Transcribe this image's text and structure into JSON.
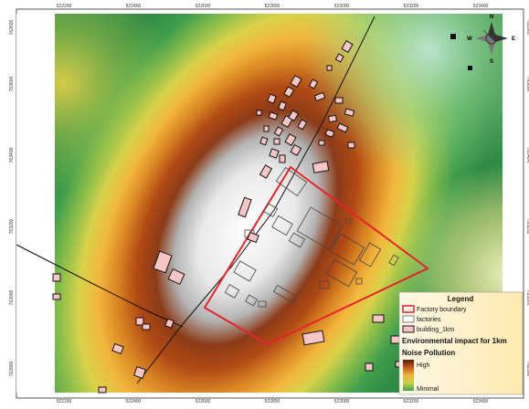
{
  "map": {
    "x_ticks_top": [
      "522200",
      "522400",
      "522600",
      "522800",
      "523000",
      "523200",
      "523400"
    ],
    "x_ticks_bottom": [
      "522200",
      "522400",
      "522600",
      "522800",
      "523000",
      "523200",
      "523400"
    ],
    "y_ticks_left": [
      "763600",
      "763400",
      "763200",
      "763000",
      "762800",
      "762600"
    ],
    "y_ticks_right": [
      "763600",
      "763400",
      "763200",
      "763000",
      "762800",
      "762600"
    ]
  },
  "north_arrow": {
    "n": "N",
    "s": "S",
    "e": "E",
    "w": "W"
  },
  "legend": {
    "title": "Legend",
    "factory_boundary": "Factory boundary",
    "factories": "factories",
    "building": "building_1km",
    "impact_heading": "Environmental impact for 1km",
    "noise_heading": "Noise Pollution",
    "ramp_high": "High",
    "ramp_low": "Minimal"
  },
  "colors": {
    "boundary": "#e8222a",
    "building_fill": "#f6c6c6",
    "factory_fill": "#ffffff",
    "ramp": [
      "#ffffff",
      "#cfcfcf",
      "#7a2e12",
      "#c96a1c",
      "#f2b33a",
      "#cbd24a",
      "#3fa14b"
    ]
  }
}
